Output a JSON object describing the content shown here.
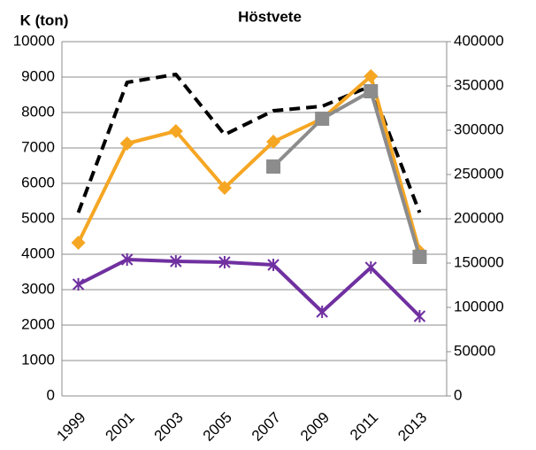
{
  "chart_data": {
    "type": "line",
    "title": "Höstvete",
    "y_label": "K (ton)",
    "categories": [
      "1999",
      "2001",
      "2003",
      "2005",
      "2007",
      "2009",
      "2011",
      "2013"
    ],
    "ylim": [
      0,
      10000
    ],
    "yticks": [
      0,
      1000,
      2000,
      3000,
      4000,
      5000,
      6000,
      7000,
      8000,
      9000,
      10000
    ],
    "y2lim": [
      0,
      400000
    ],
    "y2ticks": [
      0,
      50000,
      100000,
      150000,
      200000,
      250000,
      300000,
      350000,
      400000
    ],
    "grid": true,
    "series": [
      {
        "color": "#000000",
        "dash": true,
        "marker": "none",
        "values": [
          5175,
          8850,
          9075,
          7375,
          8050,
          8175,
          8750,
          5175
        ]
      },
      {
        "color": "#f5a623",
        "marker": "diamond",
        "values": [
          4325,
          7125,
          7475,
          5875,
          7175,
          7825,
          9025,
          4075
        ]
      },
      {
        "color": "#8c8c8c",
        "marker": "square",
        "values": [
          null,
          null,
          null,
          null,
          6475,
          7825,
          8600,
          3925
        ]
      },
      {
        "color": "#7030a0",
        "marker": "star",
        "axis": "y2",
        "values": [
          126000,
          154000,
          152000,
          151000,
          148000,
          95000,
          145000,
          90000
        ]
      }
    ]
  }
}
